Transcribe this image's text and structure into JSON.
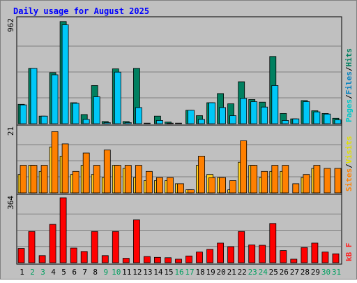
{
  "chart_data": {
    "type": "bar",
    "title": "Daily usage for August 2025",
    "days": [
      "1",
      "2",
      "3",
      "4",
      "5",
      "6",
      "7",
      "8",
      "9",
      "10",
      "11",
      "12",
      "13",
      "14",
      "15",
      "16",
      "17",
      "18",
      "19",
      "20",
      "21",
      "22",
      "23",
      "24",
      "25",
      "26",
      "27",
      "28",
      "29",
      "30",
      "31"
    ],
    "weekend_days": [
      "2",
      "3",
      "9",
      "10",
      "16",
      "17",
      "23",
      "24",
      "30",
      "31"
    ],
    "panels": [
      {
        "id": "hits",
        "max_label": "962",
        "ymax": 962,
        "legend": [
          {
            "text": "Pages",
            "color": "#00c8c8"
          },
          {
            "text": "/",
            "color": "#000000"
          },
          {
            "text": "Files",
            "color": "#0080c0"
          },
          {
            "text": "/",
            "color": "#000000"
          },
          {
            "text": "Hits",
            "color": "#008060"
          }
        ],
        "series": [
          {
            "name": "Hits",
            "color": "#008060",
            "values": [
              180,
              515,
              70,
              475,
              950,
              195,
              85,
              355,
              20,
              510,
              20,
              515,
              5,
              70,
              15,
              5,
              125,
              75,
              195,
              280,
              185,
              390,
              225,
              200,
              625,
              95,
              45,
              215,
              120,
              95,
              50
            ]
          },
          {
            "name": "Files",
            "color": "#00c8f8",
            "values": [
              175,
              515,
              70,
              455,
              920,
              190,
              40,
              250,
              10,
              480,
              10,
              150,
              0,
              30,
              5,
              0,
              125,
              40,
              195,
              150,
              75,
              235,
              205,
              155,
              355,
              30,
              45,
              205,
              110,
              90,
              35
            ]
          }
        ]
      },
      {
        "id": "visits",
        "max_label": "21",
        "ymax": 21,
        "legend": [
          {
            "text": "Sites",
            "color": "#ff8000"
          },
          {
            "text": "/",
            "color": "#000000"
          },
          {
            "text": "Visits",
            "color": "#e0e000"
          }
        ],
        "series": [
          {
            "name": "Visits",
            "color": "#ffd020",
            "values": [
              6,
              9,
              7,
              15,
              12,
              6,
              9,
              6,
              5,
              9,
              8,
              5,
              4,
              4,
              4,
              3,
              1,
              9,
              6,
              5,
              1,
              10,
              9,
              5,
              7,
              7,
              0,
              5,
              8,
              0,
              0
            ]
          },
          {
            "name": "Sites",
            "color": "#ff8000",
            "values": [
              9,
              9,
              9,
              20,
              16,
              7,
              13,
              9,
              14,
              9,
              9,
              9,
              7,
              5,
              5,
              3,
              1,
              12,
              5,
              5,
              4,
              17,
              9,
              7,
              9,
              9,
              3,
              6,
              9,
              8,
              8
            ]
          }
        ]
      },
      {
        "id": "kbf",
        "max_label": "364",
        "ymax": 364,
        "legend": [
          {
            "text": "kB F",
            "color": "#ff2020"
          }
        ],
        "series": [
          {
            "name": "kB F",
            "color": "#ff0000",
            "values": [
              80,
              175,
              40,
              215,
              364,
              82,
              63,
              175,
              40,
              175,
              25,
              240,
              35,
              30,
              28,
              20,
              38,
              60,
              75,
              110,
              90,
              175,
              100,
              98,
              220,
              68,
              20,
              85,
              110,
              60,
              50
            ]
          }
        ]
      }
    ]
  }
}
